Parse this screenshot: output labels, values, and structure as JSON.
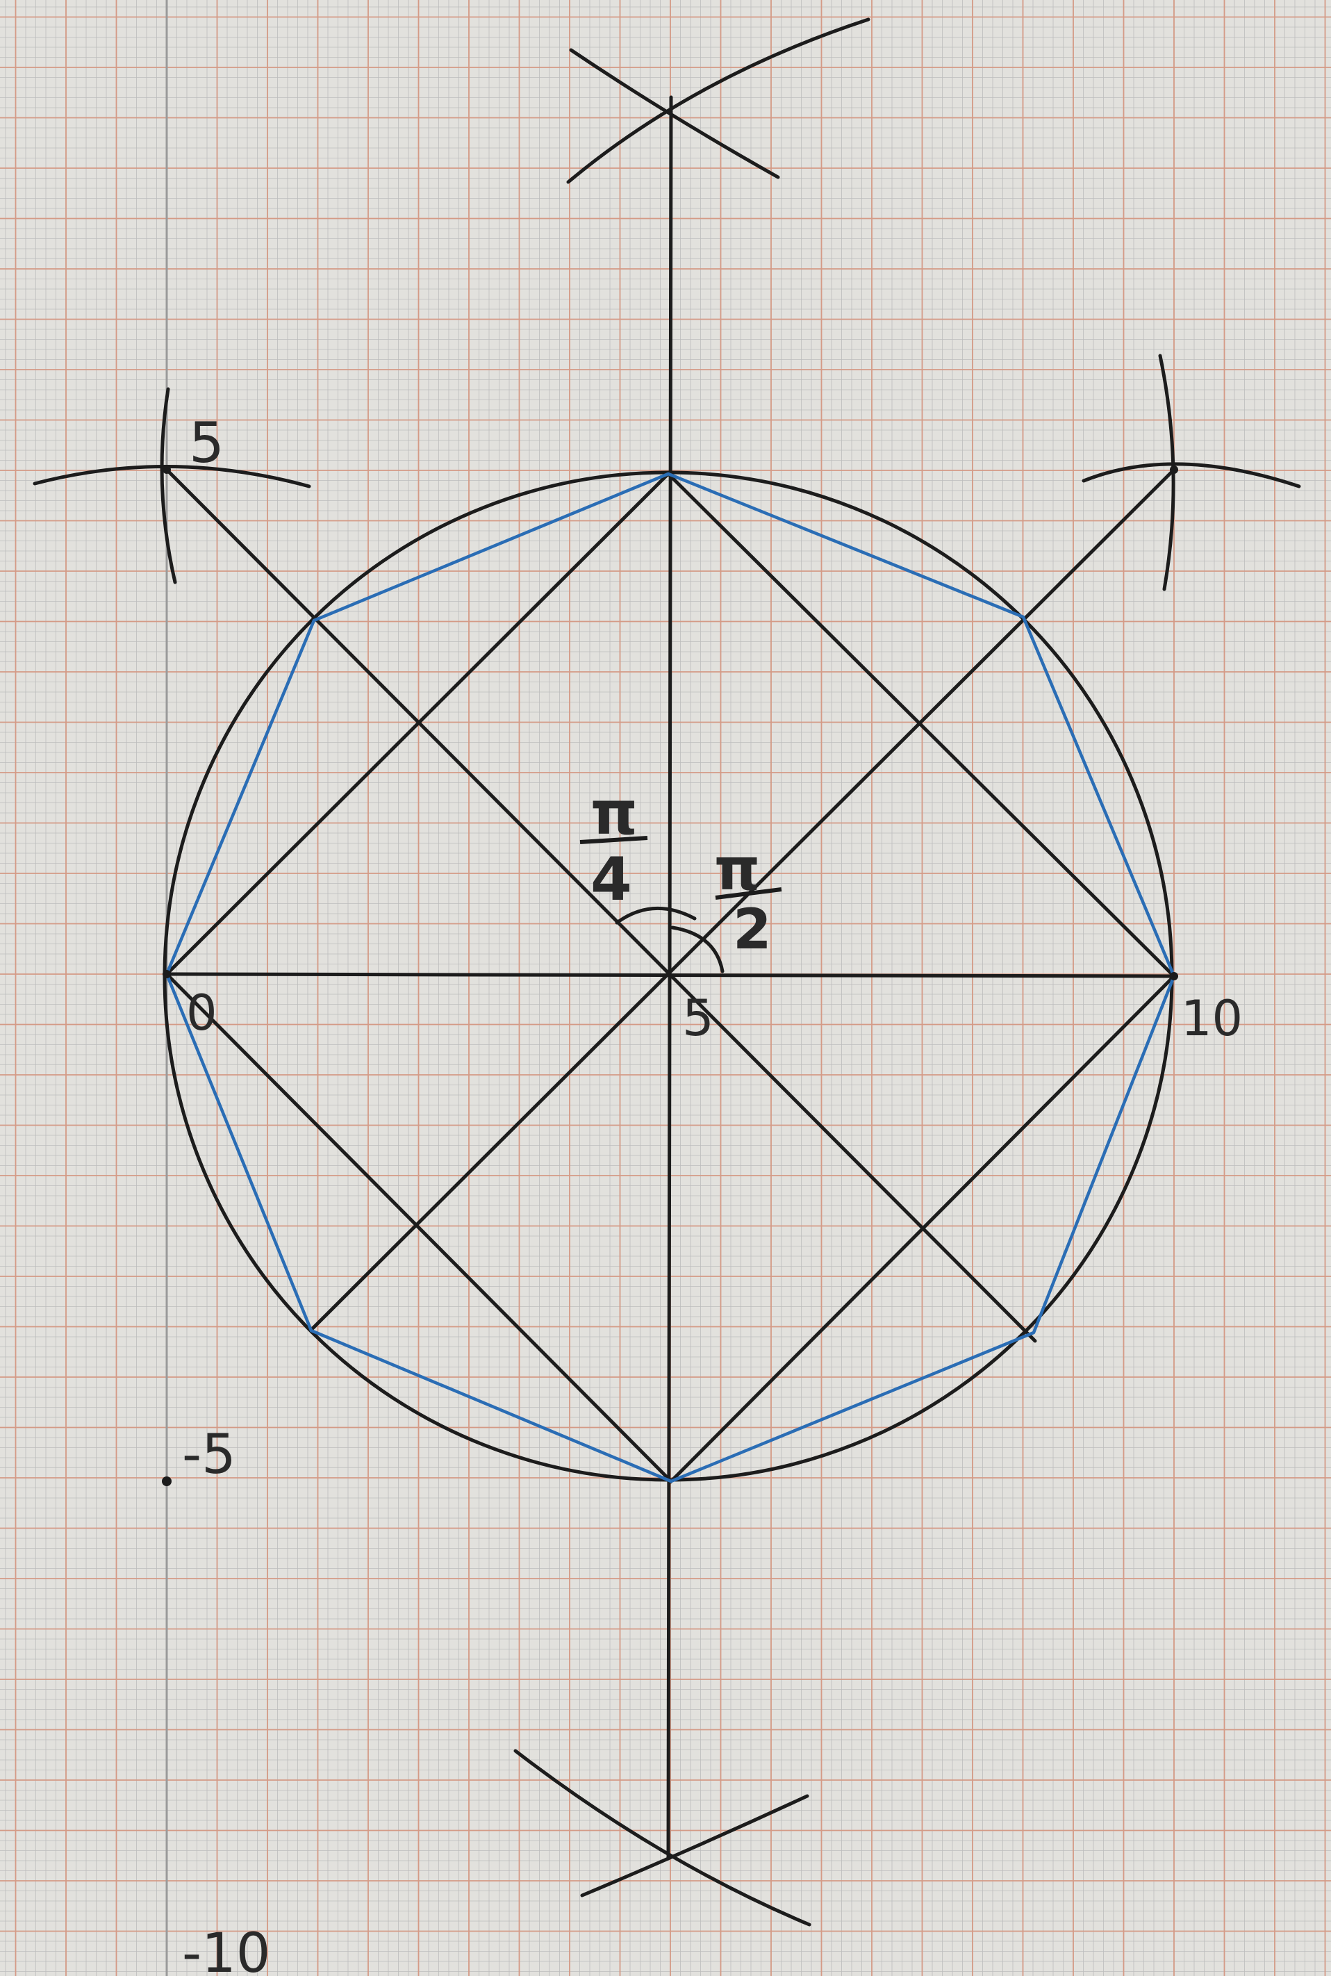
{
  "grid": {
    "paper_color": "#e2e1dd",
    "minor_line_color": "#bdbdbd",
    "major_line_color": "#d49a86",
    "axis_color": "#9a9a9a"
  },
  "construction": {
    "ink_color": "#1c1c1c",
    "octagon_color": "#2a6db5",
    "circle_center": [
      5,
      0
    ],
    "circle_radius": 5,
    "octagon_vertices": [
      [
        0,
        0
      ],
      [
        1.46,
        3.54
      ],
      [
        5,
        5
      ],
      [
        8.54,
        3.54
      ],
      [
        10,
        0
      ],
      [
        8.54,
        -3.54
      ],
      [
        5,
        -5
      ],
      [
        1.46,
        -3.54
      ]
    ]
  },
  "labels": {
    "top_left_five": "5",
    "center_five": "5",
    "left_zero": "0",
    "right_ten": "10",
    "minus_five": "-5",
    "minus_ten": "-10",
    "pi_over_four_top": "π",
    "pi_over_four_bottom": "4",
    "pi_over_two_top": "π",
    "pi_over_two_bottom": "2"
  }
}
